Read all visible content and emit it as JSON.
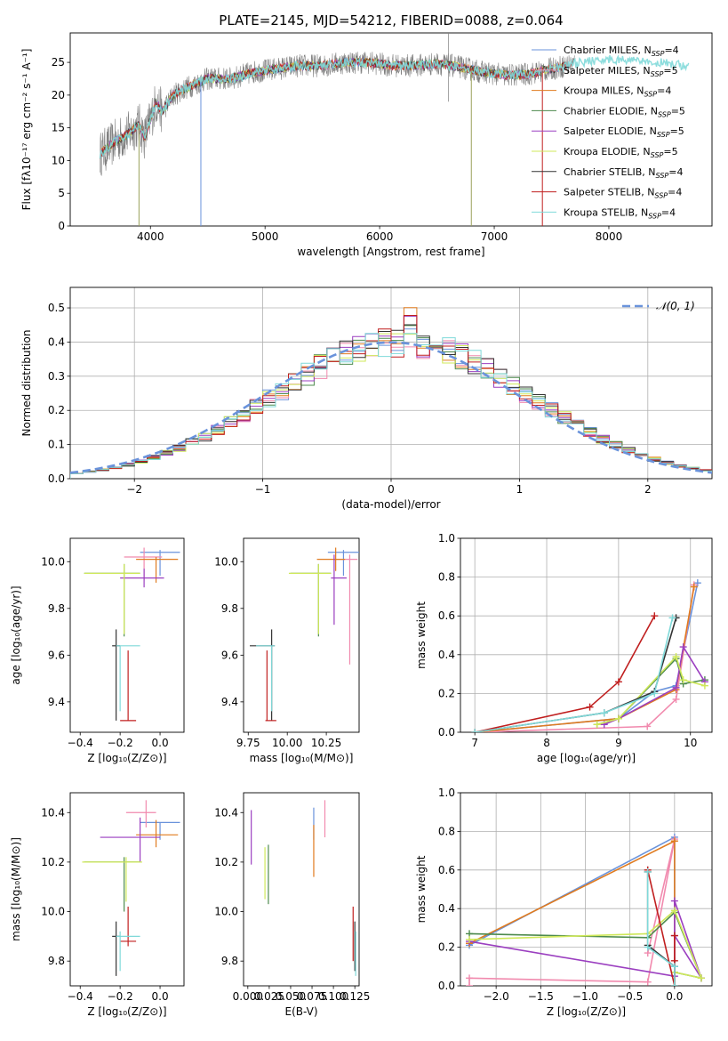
{
  "chart_data": [
    {
      "id": "spectrum",
      "type": "line",
      "title": "PLATE=2145, MJD=54212, FIBERID=0088, z=0.064",
      "xlabel": "wavelength [Angstrom, rest frame]",
      "ylabel": "Flux [fλ10⁻¹⁷ erg cm⁻² s⁻¹ A⁻¹]",
      "xlim": [
        3300,
        8900
      ],
      "ylim": [
        0,
        29.5
      ],
      "xticks": [
        4000,
        5000,
        6000,
        7000,
        8000
      ],
      "yticks": [
        0,
        5,
        10,
        15,
        20,
        25
      ],
      "grid": false,
      "legend_position": "top-right",
      "continuum": {
        "x": [
          3560,
          3700,
          3800,
          3900,
          3950,
          4050,
          4100,
          4200,
          4300,
          4500,
          4700,
          4900,
          5100,
          5300,
          5500,
          5700,
          5900,
          6100,
          6300,
          6500,
          6700,
          6900,
          7100,
          7300,
          7500,
          7700,
          7900,
          8100,
          8300,
          8500,
          8700
        ],
        "y": [
          11,
          13,
          14,
          15.5,
          13.5,
          19,
          17.5,
          20,
          21,
          22.5,
          22.5,
          23.5,
          24,
          24.5,
          24.5,
          25,
          25,
          24.5,
          24.5,
          24.8,
          24.3,
          23.5,
          23,
          23.2,
          24,
          24.8,
          25.3,
          25.5,
          25.3,
          24.8,
          24.5
        ]
      },
      "series": [
        {
          "name": "Chabrier MILES, N_SSP=4",
          "color": "#6a93db"
        },
        {
          "name": "Salpeter MILES, N_SSP=5",
          "color": "#f18aae"
        },
        {
          "name": "Kroupa MILES, N_SSP=4",
          "color": "#e07b1f"
        },
        {
          "name": "Chabrier ELODIE, N_SSP=5",
          "color": "#4d8a4d"
        },
        {
          "name": "Salpeter ELODIE, N_SSP=5",
          "color": "#9b3fc0"
        },
        {
          "name": "Kroupa ELODIE, N_SSP=5",
          "color": "#cfe85a"
        },
        {
          "name": "Chabrier STELIB, N_SSP=4",
          "color": "#333333"
        },
        {
          "name": "Salpeter STELIB, N_SSP=4",
          "color": "#c01f1f"
        },
        {
          "name": "Kroupa STELIB, N_SSP=4",
          "color": "#7fd9d9"
        }
      ]
    },
    {
      "id": "residuals",
      "type": "bar",
      "xlabel": "(data-model)/error",
      "ylabel": "Normed distribution",
      "xlim": [
        -2.5,
        2.5
      ],
      "ylim": [
        0,
        0.56
      ],
      "xticks": [
        -2,
        -1,
        0,
        1,
        2
      ],
      "yticks": [
        0.0,
        0.1,
        0.2,
        0.3,
        0.4,
        0.5
      ],
      "grid": true,
      "legend": "𝒩(0, 1)",
      "bin_width": 0.1
    },
    {
      "id": "age_vs_Z",
      "type": "scatter",
      "xlabel": "Z [log₁₀(Z/Z⊙)]",
      "ylabel": "age  [log₁₀(age/yr)]",
      "xlim": [
        -0.45,
        0.12
      ],
      "ylim": [
        9.27,
        10.1
      ],
      "xticks": [
        -0.4,
        -0.2,
        0.0
      ],
      "yticks": [
        9.4,
        9.6,
        9.8,
        10.0
      ],
      "points": [
        {
          "x": 0.0,
          "xe": [
            0.1,
            0.1
          ],
          "y": 10.04,
          "ye": [
            0.1,
            0.01
          ],
          "color": "#6a93db"
        },
        {
          "x": -0.08,
          "xe": [
            0.1,
            0.09
          ],
          "y": 10.02,
          "ye": [
            0.1,
            0.04
          ],
          "color": "#f18aae"
        },
        {
          "x": -0.02,
          "xe": [
            0.1,
            0.11
          ],
          "y": 10.01,
          "ye": [
            0.1,
            0.01
          ],
          "color": "#e07b1f"
        },
        {
          "x": -0.18,
          "xe": [
            0.2,
            0.08
          ],
          "y": 9.95,
          "ye": [
            0.27,
            0.04
          ],
          "color": "#4d8a4d"
        },
        {
          "x": -0.08,
          "xe": [
            0.12,
            0.1
          ],
          "y": 9.93,
          "ye": [
            0.04,
            0.04
          ],
          "color": "#9b3fc0"
        },
        {
          "x": -0.18,
          "xe": [
            0.2,
            0.08
          ],
          "y": 9.95,
          "ye": [
            0.26,
            0.04
          ],
          "color": "#cfe85a"
        },
        {
          "x": -0.22,
          "xe": [
            0.02,
            0.02
          ],
          "y": 9.64,
          "ye": [
            0.32,
            0.07
          ],
          "color": "#333333"
        },
        {
          "x": -0.16,
          "xe": [
            0.04,
            0.04
          ],
          "y": 9.32,
          "ye": [
            0.0,
            0.3
          ],
          "color": "#c01f1f"
        },
        {
          "x": -0.2,
          "xe": [
            0.02,
            0.1
          ],
          "y": 9.64,
          "ye": [
            0.28,
            0.0
          ],
          "color": "#7fd9d9"
        }
      ]
    },
    {
      "id": "age_vs_mass",
      "type": "scatter",
      "xlabel": "mass [log₁₀(M/M⊙)]",
      "ylabel": "",
      "xlim": [
        9.72,
        10.46
      ],
      "ylim": [
        9.27,
        10.1
      ],
      "xticks": [
        9.75,
        10.0,
        10.25
      ],
      "yticks": [
        9.4,
        9.6,
        9.8,
        10.0
      ],
      "points": [
        {
          "x": 10.36,
          "xe": [
            0.1,
            0.1
          ],
          "y": 10.04,
          "ye": [
            0.1,
            0.01
          ],
          "color": "#6a93db"
        },
        {
          "x": 10.4,
          "xe": [
            0.1,
            0.05
          ],
          "y": 10.01,
          "ye": [
            0.45,
            0.02
          ],
          "color": "#f18aae"
        },
        {
          "x": 10.31,
          "xe": [
            0.12,
            0.06
          ],
          "y": 10.01,
          "ye": [
            0.05,
            0.05
          ],
          "color": "#e07b1f"
        },
        {
          "x": 10.2,
          "xe": [
            0.18,
            0.08
          ],
          "y": 9.95,
          "ye": [
            0.27,
            0.04
          ],
          "color": "#4d8a4d"
        },
        {
          "x": 10.3,
          "xe": [
            0.02,
            0.08
          ],
          "y": 9.93,
          "ye": [
            0.2,
            0.1
          ],
          "color": "#9b3fc0"
        },
        {
          "x": 10.2,
          "xe": [
            0.19,
            0.08
          ],
          "y": 9.95,
          "ye": [
            0.26,
            0.04
          ],
          "color": "#cfe85a"
        },
        {
          "x": 9.9,
          "xe": [
            0.14,
            0.02
          ],
          "y": 9.64,
          "ye": [
            0.32,
            0.07
          ],
          "color": "#333333"
        },
        {
          "x": 9.87,
          "xe": [
            0.01,
            0.06
          ],
          "y": 9.32,
          "ye": [
            0.0,
            0.3
          ],
          "color": "#c01f1f"
        },
        {
          "x": 9.9,
          "xe": [
            0.1,
            0.02
          ],
          "y": 9.64,
          "ye": [
            0.28,
            0.0
          ],
          "color": "#7fd9d9"
        }
      ]
    },
    {
      "id": "mass_weight_vs_age",
      "type": "line",
      "xlabel": "age  [log₁₀(age/yr)]",
      "ylabel": "mass weight",
      "xlim": [
        6.8,
        10.3
      ],
      "ylim": [
        0,
        1
      ],
      "xticks": [
        7,
        8,
        9,
        10
      ],
      "yticks": [
        0.0,
        0.2,
        0.4,
        0.6,
        0.8,
        1.0
      ],
      "grid": true,
      "series": [
        {
          "color": "#6a93db",
          "x": [
            7.0,
            9.0,
            9.5,
            9.8,
            10.1
          ],
          "y": [
            0.0,
            0.07,
            0.21,
            0.24,
            0.77
          ]
        },
        {
          "color": "#f18aae",
          "x": [
            7.0,
            9.4,
            9.8,
            10.05
          ],
          "y": [
            0.0,
            0.03,
            0.17,
            0.76
          ]
        },
        {
          "color": "#e07b1f",
          "x": [
            7.0,
            9.0,
            9.8,
            10.05
          ],
          "y": [
            0.0,
            0.07,
            0.22,
            0.75
          ]
        },
        {
          "color": "#4d8a4d",
          "x": [
            8.7,
            9.0,
            9.8,
            9.9,
            10.2
          ],
          "y": [
            0.04,
            0.07,
            0.38,
            0.25,
            0.27
          ]
        },
        {
          "color": "#9b3fc0",
          "x": [
            8.8,
            9.0,
            9.8,
            9.9,
            10.2
          ],
          "y": [
            0.04,
            0.07,
            0.23,
            0.44,
            0.26
          ]
        },
        {
          "color": "#cfe85a",
          "x": [
            8.7,
            9.0,
            9.8,
            9.9,
            10.2
          ],
          "y": [
            0.04,
            0.07,
            0.39,
            0.27,
            0.24
          ]
        },
        {
          "color": "#333333",
          "x": [
            7.0,
            8.8,
            9.5,
            9.8
          ],
          "y": [
            0.0,
            0.1,
            0.21,
            0.59
          ]
        },
        {
          "color": "#c01f1f",
          "x": [
            7.0,
            8.6,
            9.0,
            9.5
          ],
          "y": [
            0.0,
            0.13,
            0.26,
            0.6
          ]
        },
        {
          "color": "#7fd9d9",
          "x": [
            7.0,
            8.8,
            9.5,
            9.75
          ],
          "y": [
            0.0,
            0.1,
            0.2,
            0.59
          ]
        }
      ]
    },
    {
      "id": "mass_vs_Z",
      "type": "scatter",
      "xlabel": "Z [log₁₀(Z/Z⊙)]",
      "ylabel": "mass [log₁₀(M/M⊙)]",
      "xlim": [
        -0.45,
        0.12
      ],
      "ylim": [
        9.7,
        10.48
      ],
      "xticks": [
        -0.4,
        -0.2,
        0.0
      ],
      "yticks": [
        9.8,
        10.0,
        10.2,
        10.4
      ],
      "points": [
        {
          "x": 0.0,
          "xe": [
            0.1,
            0.1
          ],
          "y": 10.36,
          "ye": [
            0.07,
            0.0
          ],
          "color": "#6a93db"
        },
        {
          "x": -0.07,
          "xe": [
            0.1,
            0.05
          ],
          "y": 10.4,
          "ye": [
            0.06,
            0.05
          ],
          "color": "#f18aae"
        },
        {
          "x": -0.02,
          "xe": [
            0.1,
            0.11
          ],
          "y": 10.31,
          "ye": [
            0.05,
            0.06
          ],
          "color": "#e07b1f"
        },
        {
          "x": -0.18,
          "xe": [
            0.2,
            0.08
          ],
          "y": 10.2,
          "ye": [
            0.2,
            0.02
          ],
          "color": "#4d8a4d"
        },
        {
          "x": -0.1,
          "xe": [
            0.2,
            0.1
          ],
          "y": 10.3,
          "ye": [
            0.1,
            0.08
          ],
          "color": "#9b3fc0"
        },
        {
          "x": -0.17,
          "xe": [
            0.22,
            0.08
          ],
          "y": 10.2,
          "ye": [
            0.16,
            0.02
          ],
          "color": "#cfe85a"
        },
        {
          "x": -0.22,
          "xe": [
            0.02,
            0.02
          ],
          "y": 9.9,
          "ye": [
            0.16,
            0.06
          ],
          "color": "#333333"
        },
        {
          "x": -0.16,
          "xe": [
            0.04,
            0.04
          ],
          "y": 9.88,
          "ye": [
            0.02,
            0.14
          ],
          "color": "#c01f1f"
        },
        {
          "x": -0.2,
          "xe": [
            0.02,
            0.1
          ],
          "y": 9.9,
          "ye": [
            0.14,
            0.02
          ],
          "color": "#7fd9d9"
        }
      ]
    },
    {
      "id": "mass_vs_ebv",
      "type": "scatter",
      "xlabel": "E(B-V)",
      "ylabel": "",
      "xlim": [
        -0.005,
        0.13
      ],
      "ylim": [
        9.7,
        10.48
      ],
      "xticks": [
        0.0,
        0.025,
        0.05,
        0.075,
        0.1,
        0.125
      ],
      "yticks": [
        9.8,
        10.0,
        10.2,
        10.4
      ],
      "points": [
        {
          "x": 0.077,
          "y0": 10.29,
          "y1": 10.42,
          "color": "#6a93db"
        },
        {
          "x": 0.09,
          "y0": 10.3,
          "y1": 10.45,
          "color": "#f18aae"
        },
        {
          "x": 0.077,
          "y0": 10.14,
          "y1": 10.35,
          "color": "#e07b1f"
        },
        {
          "x": 0.024,
          "y0": 10.03,
          "y1": 10.27,
          "color": "#4d8a4d"
        },
        {
          "x": 0.004,
          "y0": 10.19,
          "y1": 10.41,
          "color": "#9b3fc0"
        },
        {
          "x": 0.02,
          "y0": 10.05,
          "y1": 10.26,
          "color": "#cfe85a"
        },
        {
          "x": 0.125,
          "y0": 9.76,
          "y1": 9.96,
          "color": "#333333"
        },
        {
          "x": 0.123,
          "y0": 9.8,
          "y1": 10.02,
          "color": "#c01f1f"
        },
        {
          "x": 0.126,
          "y0": 9.74,
          "y1": 9.92,
          "color": "#7fd9d9"
        }
      ]
    },
    {
      "id": "mass_weight_vs_Z",
      "type": "line",
      "xlabel": "Z [log₁₀(Z/Z⊙)]",
      "ylabel": "mass weight",
      "xlim": [
        -2.4,
        0.42
      ],
      "ylim": [
        0,
        1
      ],
      "xticks": [
        -2.0,
        -1.5,
        -1.0,
        -0.5,
        0.0
      ],
      "yticks": [
        0.0,
        0.2,
        0.4,
        0.6,
        0.8,
        1.0
      ],
      "grid": true,
      "series": [
        {
          "color": "#6a93db",
          "x": [
            -2.3,
            0.0,
            0.0,
            0.0
          ],
          "y": [
            0.21,
            0.77,
            0.1,
            0.0
          ]
        },
        {
          "color": "#f18aae",
          "x": [
            -2.3,
            -2.3,
            -0.3,
            0.0,
            -0.3
          ],
          "y": [
            0.0,
            0.04,
            0.02,
            0.76,
            0.17
          ]
        },
        {
          "color": "#e07b1f",
          "x": [
            -2.3,
            0.0,
            0.0,
            0.0
          ],
          "y": [
            0.22,
            0.75,
            0.07,
            0.0
          ]
        },
        {
          "color": "#4d8a4d",
          "x": [
            -2.3,
            -0.3,
            0.0,
            0.3,
            0.0
          ],
          "y": [
            0.27,
            0.25,
            0.38,
            0.04,
            0.07
          ]
        },
        {
          "color": "#9b3fc0",
          "x": [
            -2.3,
            0.0,
            0.0,
            0.3,
            0.0
          ],
          "y": [
            0.23,
            0.05,
            0.44,
            0.04,
            0.26
          ]
        },
        {
          "color": "#cfe85a",
          "x": [
            -2.3,
            -0.3,
            0.0,
            0.3,
            0.0
          ],
          "y": [
            0.24,
            0.27,
            0.39,
            0.04,
            0.07
          ]
        },
        {
          "color": "#333333",
          "x": [
            -0.3,
            -0.3,
            0.0,
            0.0
          ],
          "y": [
            0.59,
            0.21,
            0.1,
            0.0
          ]
        },
        {
          "color": "#c01f1f",
          "x": [
            -0.3,
            0.0,
            0.0,
            0.0
          ],
          "y": [
            0.6,
            0.0,
            0.26,
            0.13
          ]
        },
        {
          "color": "#7fd9d9",
          "x": [
            -0.3,
            -0.3,
            0.0,
            0.0
          ],
          "y": [
            0.59,
            0.2,
            0.1,
            0.0
          ]
        }
      ]
    }
  ]
}
